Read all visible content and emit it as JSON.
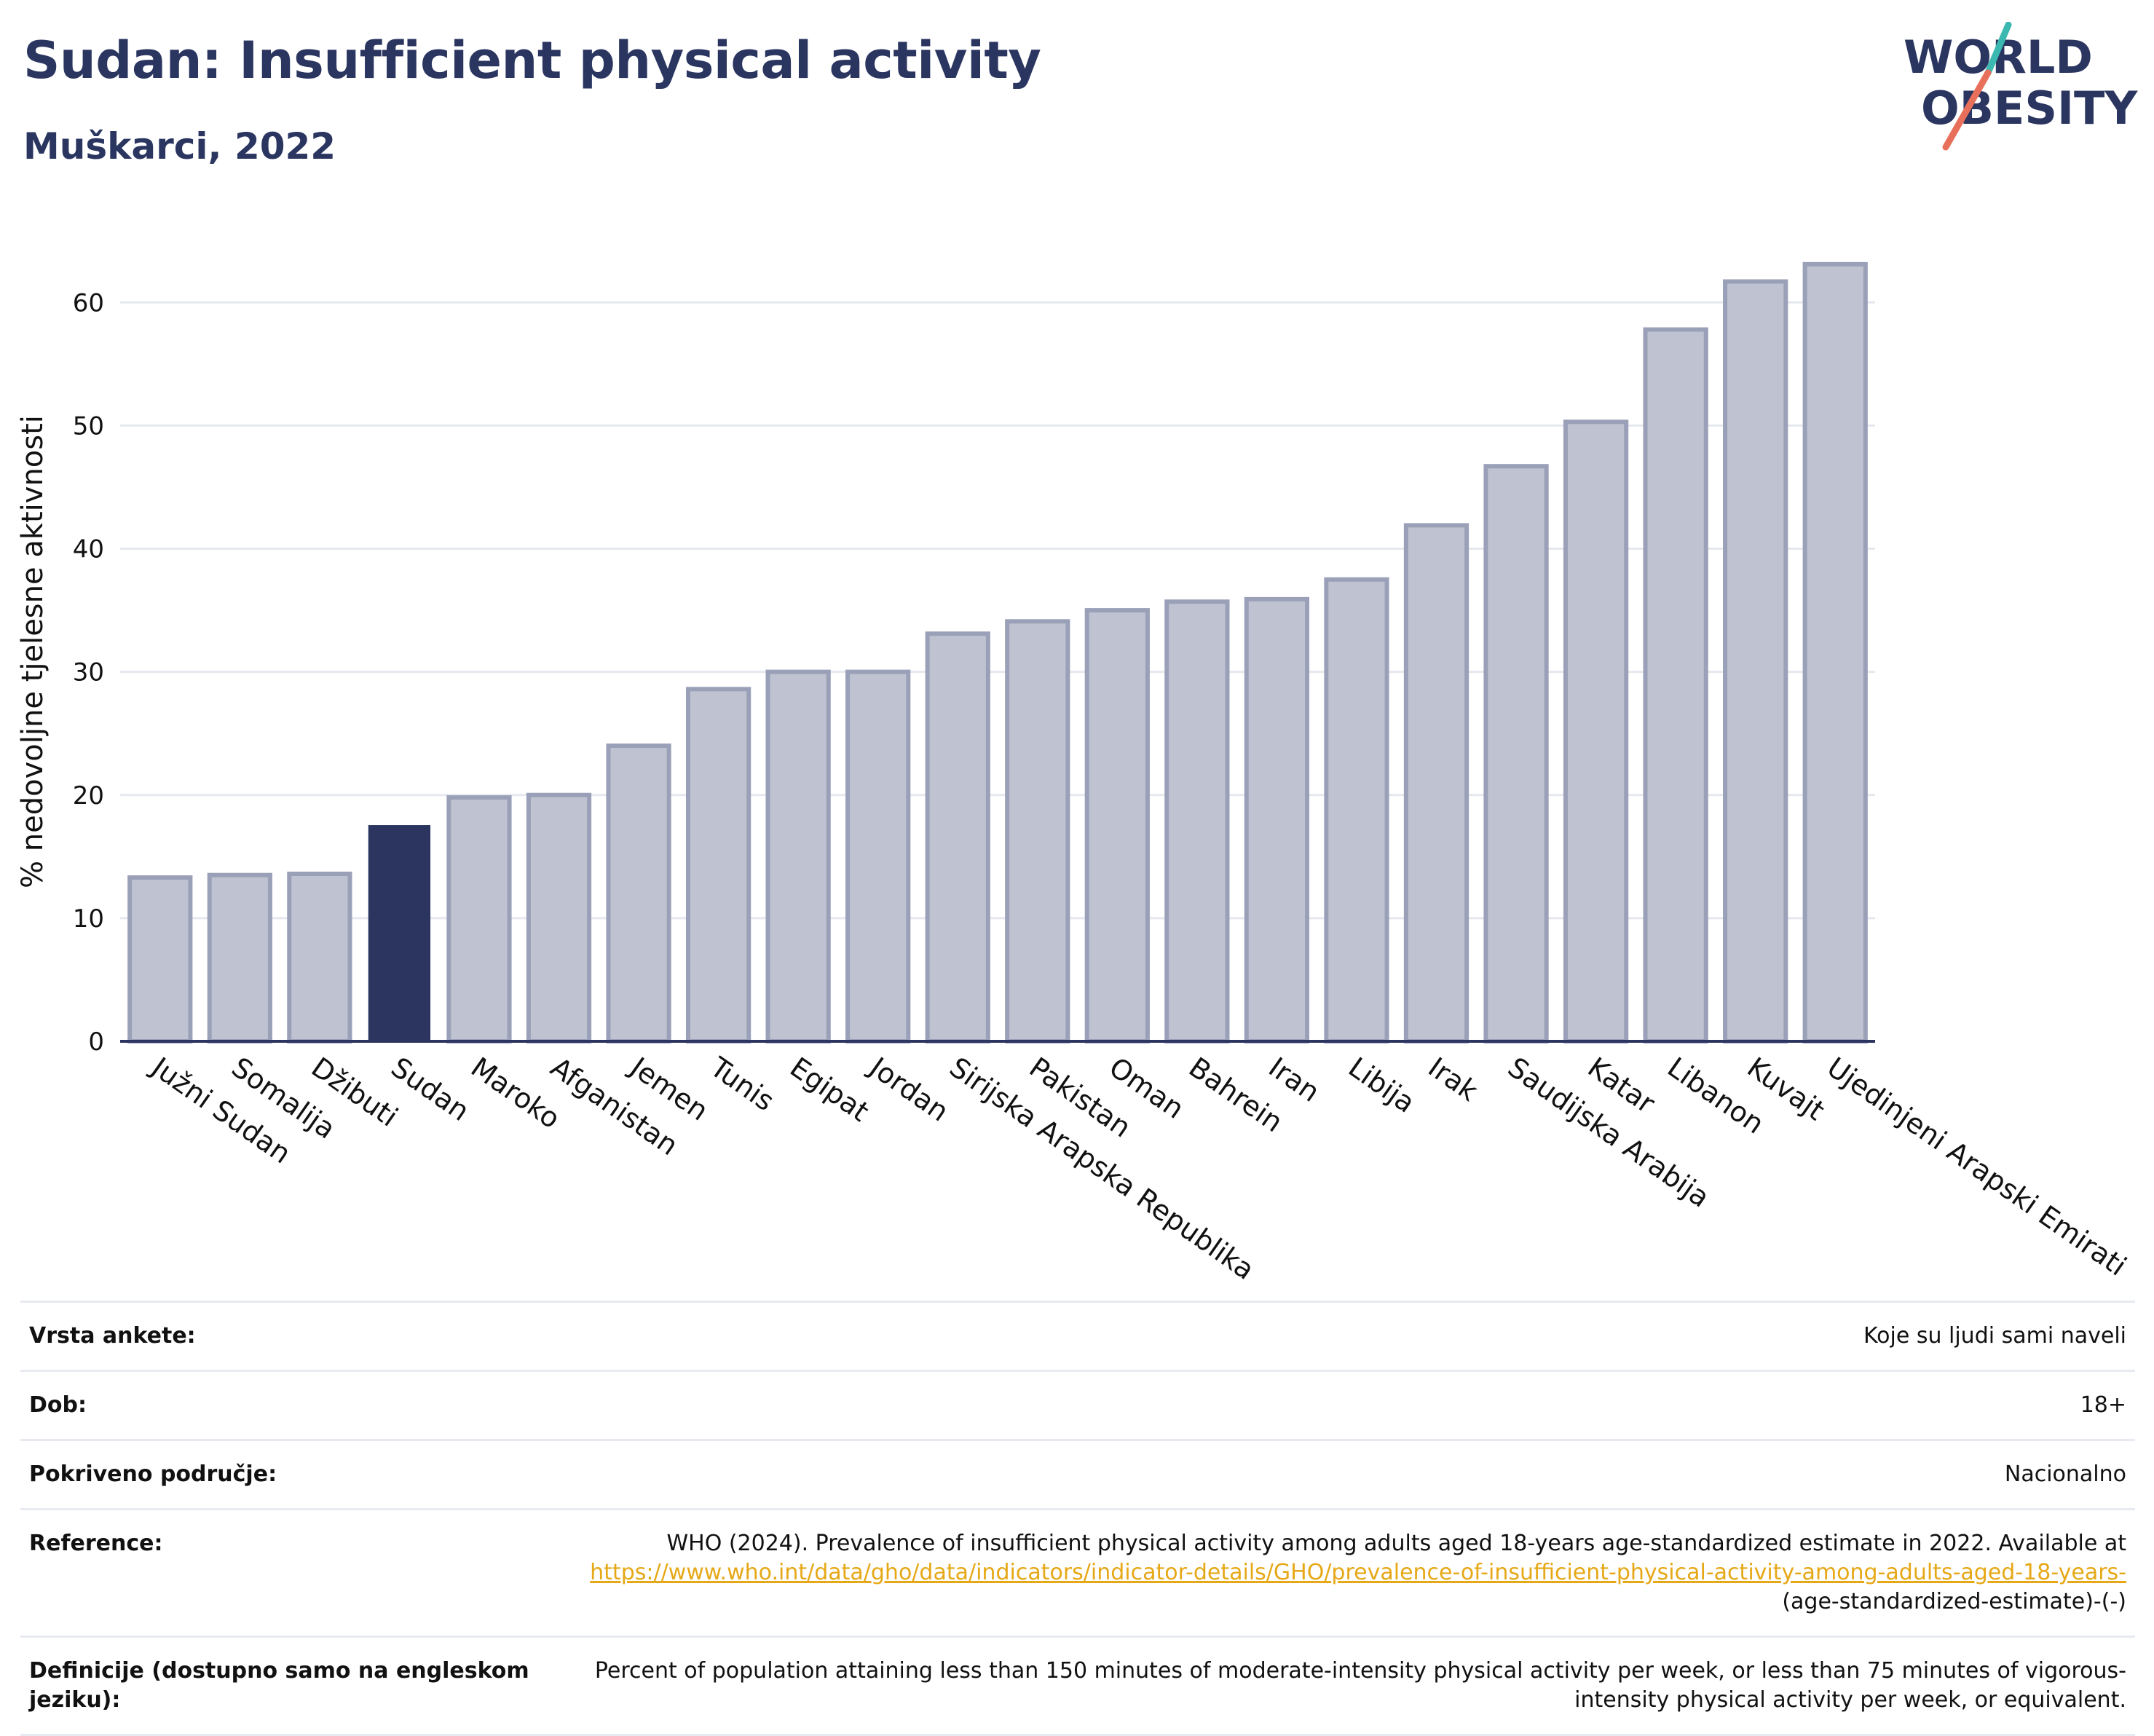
{
  "header": {
    "title": "Sudan: Insufficient physical activity",
    "subtitle": "Muškarci, 2022"
  },
  "logo": {
    "line1": "WORLD",
    "line2": "OBESITY"
  },
  "chart_data": {
    "type": "bar",
    "ylabel": "% nedovoljne tjelesne aktivnosti",
    "ylim": [
      0,
      68
    ],
    "yticks": [
      0,
      10,
      20,
      30,
      40,
      50,
      60
    ],
    "grid": true,
    "highlight": "Sudan",
    "colors": {
      "bar": "#bfc3d1",
      "bar_edge": "#9aa0b8",
      "highlight": "#2b3560"
    },
    "categories": [
      "Južni Sudan",
      "Somalija",
      "Džibuti",
      "Sudan",
      "Maroko",
      "Afganistan",
      "Jemen",
      "Tunis",
      "Egipat",
      "Jordan",
      "Sirijska Arapska Republika",
      "Pakistan",
      "Oman",
      "Bahrein",
      "Iran",
      "Libija",
      "Irak",
      "Saudijska Arabija",
      "Katar",
      "Libanon",
      "Kuvajt",
      "Ujedinjeni Arapski Emirati"
    ],
    "values": [
      13.3,
      13.5,
      13.6,
      17.5,
      19.8,
      20.0,
      24.0,
      28.6,
      30.0,
      30.0,
      33.1,
      34.1,
      35.0,
      35.7,
      35.9,
      37.5,
      41.9,
      46.7,
      50.3,
      57.8,
      61.7,
      63.1
    ]
  },
  "meta": {
    "rows": [
      {
        "label": "Vrsta ankete:",
        "value": "Koje su ljudi sami naveli"
      },
      {
        "label": "Dob:",
        "value": "18+"
      },
      {
        "label": "Pokriveno područje:",
        "value": "Nacionalno"
      },
      {
        "label": "Reference:",
        "value": "WHO (2024). Prevalence of insufficient physical activity among adults aged 18-years age-standardized estimate in 2022. Available at",
        "link": "https://www.who.int/data/gho/data/indicators/indicator-details/GHO/prevalence-of-insufficient-physical-activity-among-adults-aged-18-years-",
        "tail": "(age-standardized-estimate)-(-)"
      },
      {
        "label": "Definicije (dostupno samo na engleskom jeziku):",
        "value": "Percent of population attaining less than 150 minutes of moderate-intensity physical activity per week, or less than 75 minutes of vigorous-intensity physical activity per week, or equivalent."
      }
    ]
  }
}
